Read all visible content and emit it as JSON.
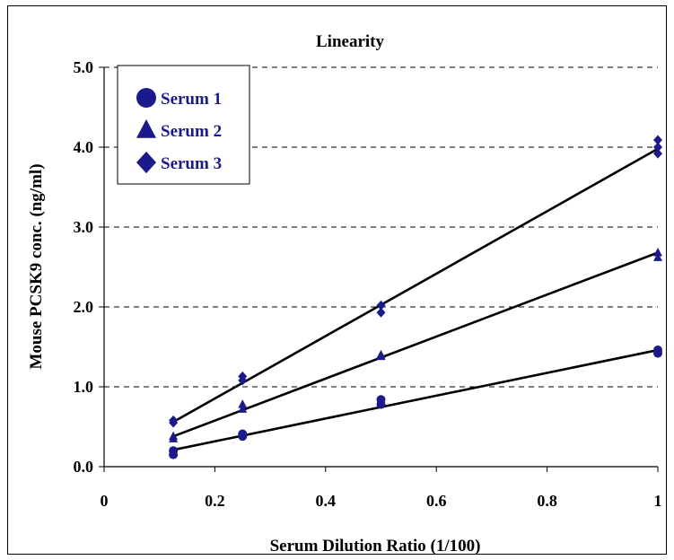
{
  "chart_data": {
    "type": "scatter",
    "title": "Linearity",
    "xlabel": "Serum Dilution Ratio (1/100)",
    "ylabel": "Mouse PCSK9 conc. (ng/ml)",
    "xlim": [
      0,
      1
    ],
    "ylim": [
      0,
      5
    ],
    "xticks": [
      "0",
      "0.2",
      "0.4",
      "0.6",
      "0.8",
      "1"
    ],
    "yticks": [
      "0.0",
      "1.0",
      "2.0",
      "3.0",
      "4.0",
      "5.0"
    ],
    "grid": "horizontal dashed",
    "legend_position": "top-left",
    "marker_color": "#1a1a8c",
    "series": [
      {
        "name": "Serum 1",
        "marker": "circle",
        "points": [
          [
            0.125,
            0.15
          ],
          [
            0.125,
            0.2
          ],
          [
            0.25,
            0.38
          ],
          [
            0.25,
            0.41
          ],
          [
            0.5,
            0.78
          ],
          [
            0.5,
            0.84
          ],
          [
            1,
            1.42
          ],
          [
            1,
            1.46
          ]
        ],
        "fit": [
          [
            0.125,
            0.21
          ],
          [
            1,
            1.46
          ]
        ]
      },
      {
        "name": "Serum 2",
        "marker": "triangle",
        "points": [
          [
            0.125,
            0.35
          ],
          [
            0.125,
            0.38
          ],
          [
            0.25,
            0.72
          ],
          [
            0.25,
            0.78
          ],
          [
            0.5,
            1.38
          ],
          [
            0.5,
            1.4
          ],
          [
            1,
            2.62
          ],
          [
            1,
            2.68
          ]
        ],
        "fit": [
          [
            0.125,
            0.38
          ],
          [
            1,
            2.68
          ]
        ]
      },
      {
        "name": "Serum 3",
        "marker": "diamond",
        "points": [
          [
            0.125,
            0.55
          ],
          [
            0.125,
            0.58
          ],
          [
            0.25,
            1.08
          ],
          [
            0.25,
            1.13
          ],
          [
            0.5,
            1.93
          ],
          [
            0.5,
            2.02
          ],
          [
            1,
            3.92
          ],
          [
            1,
            4.0
          ],
          [
            1,
            4.09
          ]
        ],
        "fit": [
          [
            0.125,
            0.56
          ],
          [
            1,
            3.98
          ]
        ]
      }
    ]
  }
}
